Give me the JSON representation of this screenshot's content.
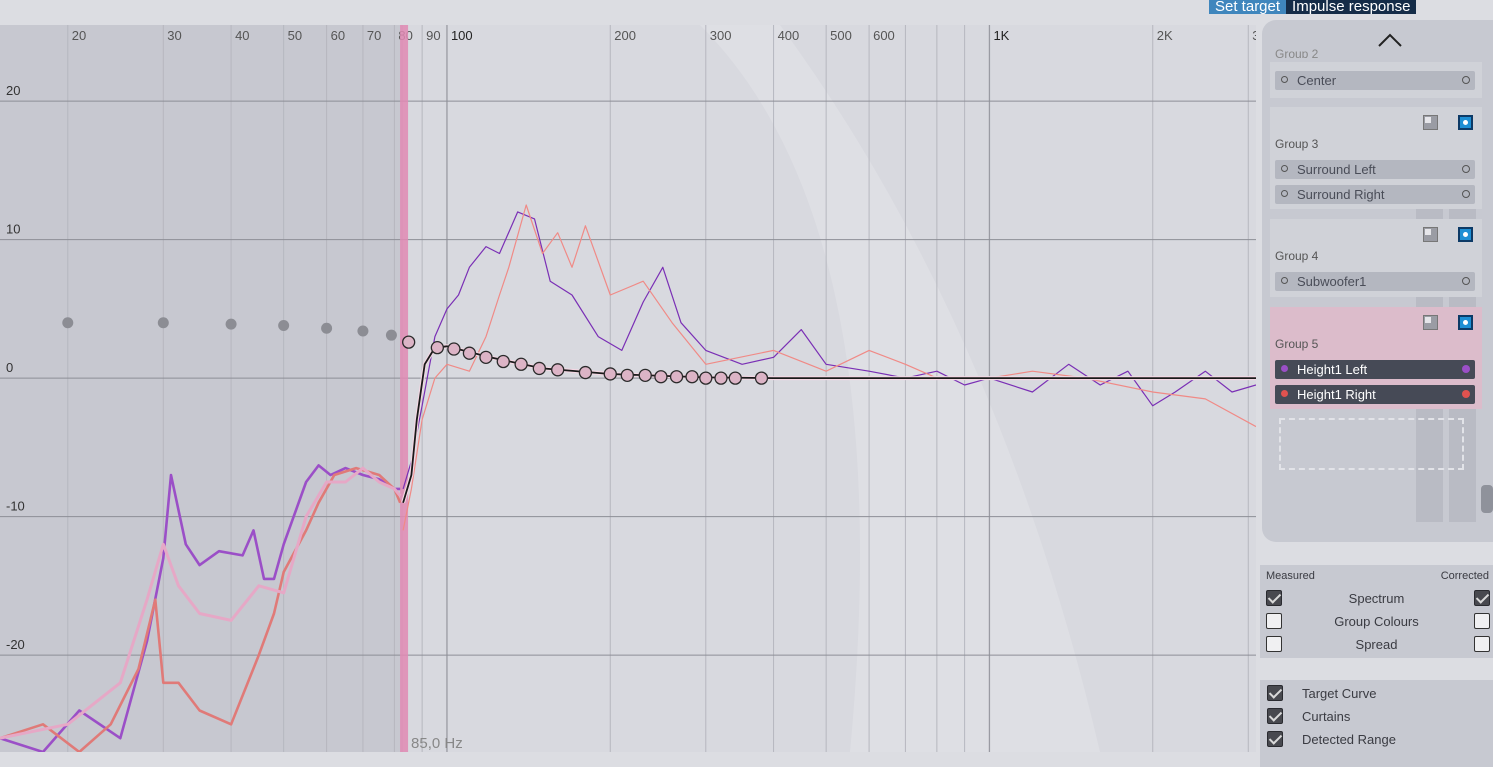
{
  "top_tabs": {
    "set_target": "Set target",
    "impulse_response": "Impulse response"
  },
  "chart_data": {
    "type": "line",
    "xscale": "log",
    "xlim": [
      15,
      3100
    ],
    "ylim": [
      -27,
      25.5
    ],
    "x_ticks": [
      {
        "v": 20,
        "l": "20"
      },
      {
        "v": 30,
        "l": "30"
      },
      {
        "v": 40,
        "l": "40"
      },
      {
        "v": 50,
        "l": "50"
      },
      {
        "v": 60,
        "l": "60"
      },
      {
        "v": 70,
        "l": "70"
      },
      {
        "v": 80,
        "l": "80"
      },
      {
        "v": 90,
        "l": "90"
      },
      {
        "v": 100,
        "l": "100",
        "major": true
      },
      {
        "v": 200,
        "l": "200"
      },
      {
        "v": 300,
        "l": "300"
      },
      {
        "v": 400,
        "l": "400"
      },
      {
        "v": 500,
        "l": "500"
      },
      {
        "v": 600,
        "l": "600"
      },
      {
        "v": 700,
        "l": ""
      },
      {
        "v": 800,
        "l": ""
      },
      {
        "v": 900,
        "l": ""
      },
      {
        "v": 1000,
        "l": "1K",
        "major": true
      },
      {
        "v": 2000,
        "l": "2K"
      },
      {
        "v": 3000,
        "l": "3"
      }
    ],
    "y_ticks": [
      {
        "v": 20,
        "l": "20"
      },
      {
        "v": 10,
        "l": "10"
      },
      {
        "v": 0,
        "l": "0"
      },
      {
        "v": -10,
        "l": "-10"
      },
      {
        "v": -20,
        "l": "-20"
      }
    ],
    "curtain_hz": 83,
    "cursor_label": "85,0 Hz",
    "target_points_inactive": [
      [
        20,
        4
      ],
      [
        30,
        4
      ],
      [
        40,
        3.9
      ],
      [
        50,
        3.8
      ],
      [
        60,
        3.6
      ],
      [
        70,
        3.4
      ],
      [
        79,
        3.1
      ]
    ],
    "target_points": [
      [
        85,
        2.6
      ],
      [
        96,
        2.2
      ],
      [
        103,
        2.1
      ],
      [
        110,
        1.8
      ],
      [
        118,
        1.5
      ],
      [
        127,
        1.2
      ],
      [
        137,
        1.0
      ],
      [
        148,
        0.7
      ],
      [
        160,
        0.6
      ],
      [
        180,
        0.4
      ],
      [
        200,
        0.3
      ],
      [
        215,
        0.2
      ],
      [
        232,
        0.2
      ],
      [
        248,
        0.1
      ],
      [
        265,
        0.1
      ],
      [
        283,
        0.1
      ],
      [
        300,
        0.0
      ],
      [
        320,
        0.0
      ],
      [
        340,
        0.0
      ],
      [
        380,
        0.0
      ]
    ],
    "target_curve": [
      [
        83,
        -9
      ],
      [
        86,
        -7
      ],
      [
        88,
        -3
      ],
      [
        91,
        1
      ],
      [
        95,
        2.2
      ],
      [
        100,
        2.3
      ],
      [
        120,
        1.5
      ],
      [
        150,
        0.7
      ],
      [
        200,
        0.3
      ],
      [
        300,
        0.05
      ],
      [
        400,
        0
      ],
      [
        3100,
        0
      ]
    ],
    "series": [
      {
        "name": "Height1 Left",
        "color": "#9b4fc7",
        "values": [
          [
            15,
            -26
          ],
          [
            18,
            -27
          ],
          [
            21,
            -24
          ],
          [
            25,
            -26
          ],
          [
            28,
            -19
          ],
          [
            30,
            -13
          ],
          [
            31,
            -7
          ],
          [
            33,
            -12
          ],
          [
            35,
            -13.5
          ],
          [
            38,
            -12.5
          ],
          [
            42,
            -12.8
          ],
          [
            44,
            -11
          ],
          [
            46,
            -14.5
          ],
          [
            48,
            -14.5
          ],
          [
            50,
            -12
          ],
          [
            55,
            -7.5
          ],
          [
            58,
            -6.3
          ],
          [
            61,
            -7
          ],
          [
            65,
            -6.5
          ],
          [
            70,
            -7
          ],
          [
            75,
            -7.3
          ],
          [
            80,
            -8
          ],
          [
            82,
            -8
          ]
        ]
      },
      {
        "name": "Height1 Left (thin)",
        "color": "#7a2fb5",
        "values": [
          [
            83,
            -8
          ],
          [
            86,
            -6
          ],
          [
            90,
            -2
          ],
          [
            95,
            3
          ],
          [
            100,
            5
          ],
          [
            105,
            6
          ],
          [
            110,
            8
          ],
          [
            118,
            9.5
          ],
          [
            125,
            9
          ],
          [
            135,
            12
          ],
          [
            145,
            11.5
          ],
          [
            155,
            7
          ],
          [
            170,
            6
          ],
          [
            190,
            3
          ],
          [
            210,
            2
          ],
          [
            230,
            5.5
          ],
          [
            250,
            8
          ],
          [
            270,
            4
          ],
          [
            300,
            2
          ],
          [
            350,
            1
          ],
          [
            400,
            1.5
          ],
          [
            450,
            3.5
          ],
          [
            500,
            1
          ],
          [
            600,
            0.5
          ],
          [
            700,
            0
          ],
          [
            800,
            0.5
          ],
          [
            900,
            -0.5
          ],
          [
            1000,
            0
          ],
          [
            1200,
            -1
          ],
          [
            1400,
            1
          ],
          [
            1600,
            -0.5
          ],
          [
            1800,
            0.5
          ],
          [
            2000,
            -2
          ],
          [
            2200,
            -1
          ],
          [
            2500,
            0.5
          ],
          [
            2800,
            -1
          ],
          [
            3100,
            -0.5
          ]
        ]
      },
      {
        "name": "Height1 Right",
        "color": "#e07a78",
        "values": [
          [
            15,
            -26
          ],
          [
            18,
            -25
          ],
          [
            21,
            -27
          ],
          [
            24,
            -25
          ],
          [
            27,
            -21
          ],
          [
            29,
            -16
          ],
          [
            30,
            -22
          ],
          [
            32,
            -22
          ],
          [
            35,
            -24
          ],
          [
            40,
            -25
          ],
          [
            45,
            -20
          ],
          [
            48,
            -17
          ],
          [
            50,
            -14
          ],
          [
            55,
            -11
          ],
          [
            58,
            -9
          ],
          [
            62,
            -7
          ],
          [
            68,
            -6.5
          ],
          [
            75,
            -7
          ],
          [
            80,
            -8
          ],
          [
            82,
            -9
          ]
        ]
      },
      {
        "name": "Height1 Right (thin)",
        "color": "#f08a86",
        "values": [
          [
            83,
            -11
          ],
          [
            86,
            -8
          ],
          [
            90,
            -3
          ],
          [
            95,
            0
          ],
          [
            100,
            1
          ],
          [
            110,
            0.5
          ],
          [
            118,
            3
          ],
          [
            125,
            6
          ],
          [
            130,
            8
          ],
          [
            140,
            12.5
          ],
          [
            150,
            9
          ],
          [
            160,
            10.5
          ],
          [
            170,
            8
          ],
          [
            180,
            11
          ],
          [
            200,
            6
          ],
          [
            230,
            7
          ],
          [
            260,
            4
          ],
          [
            300,
            1
          ],
          [
            400,
            2
          ],
          [
            500,
            0.5
          ],
          [
            600,
            2
          ],
          [
            700,
            1
          ],
          [
            800,
            0
          ],
          [
            1000,
            0
          ],
          [
            1200,
            0.5
          ],
          [
            1500,
            0
          ],
          [
            2000,
            -1
          ],
          [
            2500,
            -1.5
          ],
          [
            3100,
            -3.5
          ]
        ]
      },
      {
        "name": "Average",
        "color": "#e6a8c6",
        "values": [
          [
            15,
            -26
          ],
          [
            20,
            -25
          ],
          [
            25,
            -22
          ],
          [
            28,
            -16
          ],
          [
            30,
            -12
          ],
          [
            32,
            -15
          ],
          [
            35,
            -17
          ],
          [
            40,
            -17.5
          ],
          [
            45,
            -15
          ],
          [
            50,
            -15.5
          ],
          [
            55,
            -10
          ],
          [
            60,
            -7.5
          ],
          [
            65,
            -7.5
          ],
          [
            70,
            -6.5
          ],
          [
            75,
            -7.5
          ],
          [
            80,
            -8
          ],
          [
            82,
            -8.5
          ]
        ]
      }
    ]
  },
  "groups": {
    "partial_group": "Group 2",
    "center": "Center",
    "group3": {
      "name": "Group 3",
      "channels": [
        "Surround Left",
        "Surround Right"
      ]
    },
    "group4": {
      "name": "Group 4",
      "channels": [
        "Subwoofer1"
      ]
    },
    "group5": {
      "name": "Group 5",
      "channels": [
        "Height1 Left",
        "Height1 Right"
      ],
      "colors": [
        "#9b4fc7",
        "#e0524f"
      ]
    }
  },
  "display": {
    "measured": "Measured",
    "corrected": "Corrected",
    "rows": [
      {
        "label": "Spectrum",
        "measured": true,
        "corrected": true
      },
      {
        "label": "Group Colours",
        "measured": false,
        "corrected": false
      },
      {
        "label": "Spread",
        "measured": false,
        "corrected": false
      }
    ]
  },
  "overlays": [
    {
      "label": "Target Curve",
      "checked": true
    },
    {
      "label": "Curtains",
      "checked": true
    },
    {
      "label": "Detected Range",
      "checked": true
    }
  ]
}
